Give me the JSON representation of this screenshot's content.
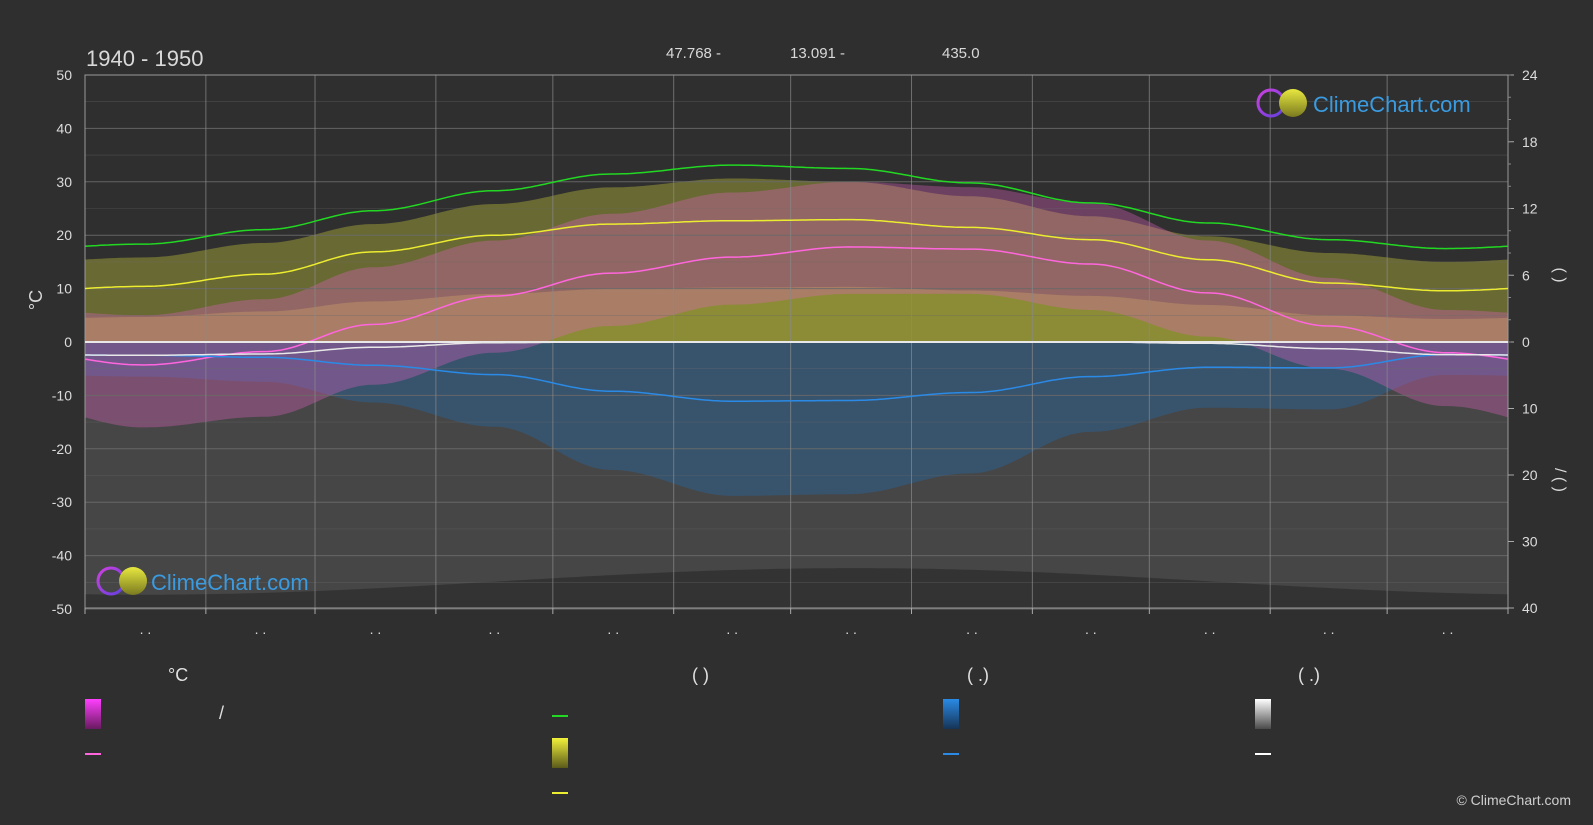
{
  "header": {
    "period": "1940 - 1950",
    "lat_label": "47.768 -",
    "lon_label": "13.091 -",
    "elev_label": "435.0"
  },
  "branding": {
    "logo_text": "ClimeChart.com",
    "copyright": "© ClimeChart.com"
  },
  "colors": {
    "background": "#2f2f2f",
    "daylight_line": "#22d822",
    "sunshine_band": "#c9c93a",
    "sunshine_line": "#ecec30",
    "temp_band": "#e060c0",
    "temp_line": "#ff66dd",
    "rain_band": "#1f6fb8",
    "rain_line": "#2a8ae6",
    "snow_band": "#8c8c8c",
    "snow_line": "#e8e8e8",
    "brand": "#3a9be0"
  },
  "chart_data": {
    "type": "area",
    "x": [
      15,
      46,
      74,
      105,
      135,
      166,
      196,
      227,
      258,
      288,
      319,
      349
    ],
    "xlim": [
      0,
      365
    ],
    "ylabel_left": "°C",
    "ylim_left": [
      -50,
      50
    ],
    "yticks_left": [
      50,
      40,
      30,
      20,
      10,
      0,
      -10,
      -20,
      -30,
      -40,
      -50
    ],
    "yticks_right_top": [
      24,
      18,
      12,
      6,
      0
    ],
    "yticks_right_bottom": [
      10,
      20,
      30,
      40
    ],
    "right_axis_top_label": "(   )",
    "right_axis_bottom_label": "/      (   )",
    "month_tick_labels": [
      ". .",
      ". .",
      ". .",
      ". .",
      ". .",
      ". .",
      ". .",
      ". .",
      ". .",
      ". .",
      ". .",
      ". ."
    ],
    "series": [
      {
        "key": "daylight",
        "unit": "h",
        "values": [
          8.8,
          10.1,
          11.8,
          13.6,
          15.1,
          15.9,
          15.6,
          14.3,
          12.5,
          10.7,
          9.2,
          8.4
        ]
      },
      {
        "key": "sunshine",
        "unit": "h",
        "values": [
          5.0,
          6.1,
          8.1,
          9.6,
          10.6,
          10.9,
          11.0,
          10.3,
          9.2,
          7.4,
          5.3,
          4.6
        ]
      },
      {
        "key": "temp_mean",
        "unit": "°C",
        "values": [
          -4.3,
          -1.8,
          3.3,
          8.6,
          12.9,
          15.9,
          17.8,
          17.4,
          14.6,
          9.2,
          3.0,
          -2.0
        ]
      },
      {
        "key": "temp_band",
        "unit": "°C",
        "min": [
          -16,
          -14,
          -8,
          -2,
          3,
          7,
          9,
          9,
          6,
          1,
          -5,
          -12
        ],
        "max": [
          5,
          8,
          14,
          19,
          24,
          28,
          30,
          29,
          26,
          19,
          12,
          6
        ]
      },
      {
        "key": "rain_mean",
        "unit": "mm",
        "values": [
          2.0,
          2.3,
          3.5,
          4.9,
          7.4,
          8.9,
          8.8,
          7.6,
          5.2,
          3.8,
          3.9,
          1.9
        ]
      },
      {
        "key": "snow_mean",
        "unit": "mm",
        "values": [
          2.0,
          1.8,
          0.8,
          0.1,
          0.0,
          0.0,
          0.0,
          0.0,
          0.0,
          0.2,
          1.0,
          1.9
        ]
      }
    ]
  },
  "legend": {
    "col1": {
      "header": "°C",
      "row1_text": "/"
    },
    "col2": {
      "header": "(           )"
    },
    "col3": {
      "header": "(    .)"
    },
    "col4": {
      "header": "(    .)"
    }
  }
}
